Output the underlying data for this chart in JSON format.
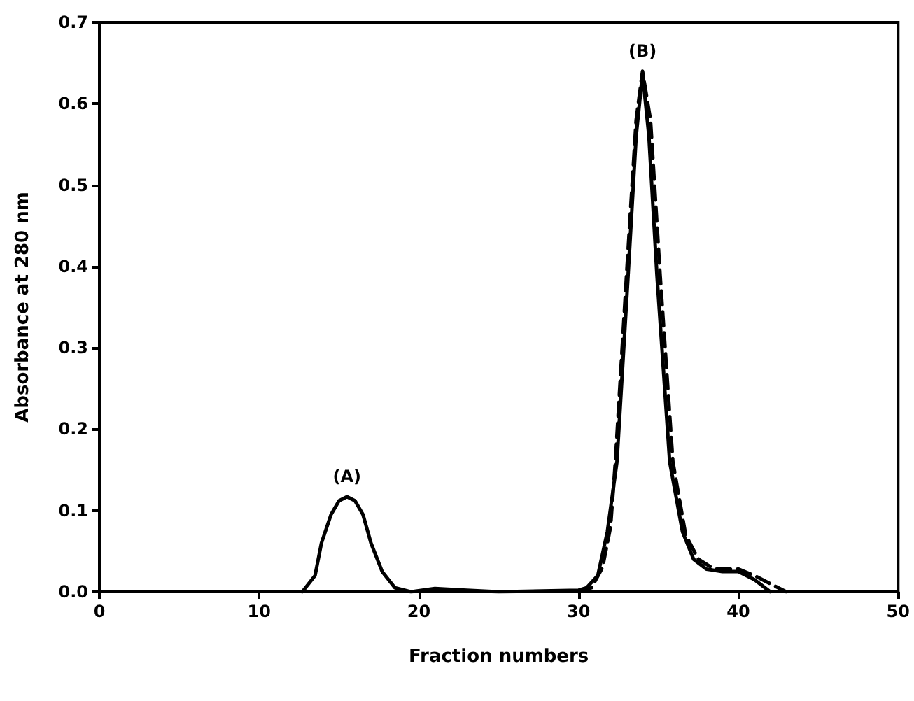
{
  "chart_data": {
    "type": "line",
    "xlabel": "Fraction numbers",
    "ylabel": "Absorbance at 280 nm",
    "xlim": [
      0,
      50
    ],
    "xticks": [
      0,
      10,
      20,
      30,
      40,
      50
    ],
    "ylim": [
      0,
      0.7
    ],
    "yticks": [
      {
        "value": 0,
        "label": "0.0"
      },
      0.1,
      0.2,
      0.3,
      0.4,
      0.5,
      0.6,
      0.7
    ],
    "grid": false,
    "marker": "none",
    "series": [
      {
        "color": "#000000",
        "line_style": "solid",
        "x": [
          12.7,
          13.5,
          13.9,
          14.5,
          15,
          15.5,
          16,
          16.5,
          17,
          17.7,
          18.5,
          19.5,
          21,
          23,
          25,
          30,
          30.5,
          31.2,
          31.8,
          32.4,
          33.1,
          33.6,
          34,
          34.4,
          34.9,
          35.7,
          36.5,
          37.2,
          38,
          39,
          40,
          41,
          42
        ],
        "values": [
          0,
          0.02,
          0.06,
          0.095,
          0.112,
          0.117,
          0.112,
          0.095,
          0.06,
          0.025,
          0.005,
          0,
          0.004,
          0.002,
          0,
          0.002,
          0.005,
          0.02,
          0.074,
          0.16,
          0.39,
          0.56,
          0.637,
          0.56,
          0.39,
          0.16,
          0.074,
          0.04,
          0.028,
          0.025,
          0.025,
          0.015,
          0
        ]
      },
      {
        "color": "#000000",
        "line_style": "dashed",
        "x": [
          30,
          30.8,
          31.5,
          32,
          32.3,
          33,
          33.6,
          34,
          34.5,
          35.1,
          35.9,
          36.7,
          37.5,
          38.5,
          40,
          41,
          42,
          43
        ],
        "values": [
          0,
          0.005,
          0.03,
          0.08,
          0.16,
          0.39,
          0.58,
          0.64,
          0.58,
          0.39,
          0.16,
          0.07,
          0.04,
          0.028,
          0.028,
          0.02,
          0.01,
          0
        ]
      }
    ],
    "annotations": [
      {
        "text": "(A)",
        "x": 15.5,
        "y": 0.117
      },
      {
        "text": "(B)",
        "x": 34,
        "y": 0.64
      }
    ]
  }
}
